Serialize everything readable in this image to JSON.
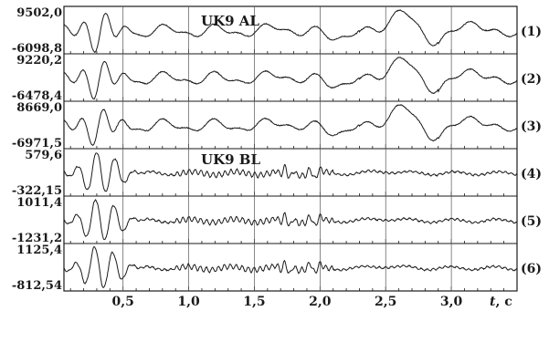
{
  "chart_data": {
    "type": "line",
    "group_labels": [
      "UK9 AL",
      "UK9 BL"
    ],
    "x_axis": {
      "label": "t, c",
      "label_italic_part": "t",
      "label_unit_part": ", c",
      "ticks": [
        0.5,
        1.0,
        1.5,
        2.0,
        2.5,
        3.0
      ],
      "tick_labels": [
        "0,5",
        "1,0",
        "1,5",
        "2,0",
        "2,5",
        "3,0"
      ],
      "xlim": [
        0.05,
        3.5
      ]
    },
    "grid": true,
    "series": [
      {
        "name": "(1)",
        "y_max_label": "9502,0",
        "y_min_label": "-6098,8",
        "y_max": 9502.0,
        "y_min": -6098.8,
        "group": "UK9 AL"
      },
      {
        "name": "(2)",
        "y_max_label": "9220,2",
        "y_min_label": "-6478,4",
        "y_max": 9220.2,
        "y_min": -6478.4,
        "group": "UK9 AL"
      },
      {
        "name": "(3)",
        "y_max_label": "8669,0",
        "y_min_label": "-6971,5",
        "y_max": 8669.0,
        "y_min": -6971.5,
        "group": "UK9 AL"
      },
      {
        "name": "(4)",
        "y_max_label": "579,6",
        "y_min_label": "-322,15",
        "y_max": 579.6,
        "y_min": -322.15,
        "group": "UK9 BL"
      },
      {
        "name": "(5)",
        "y_max_label": "1011,4",
        "y_min_label": "-1231,2",
        "y_max": 1011.4,
        "y_min": -1231.2,
        "group": "UK9 BL"
      },
      {
        "name": "(6)",
        "y_max_label": "1125,4",
        "y_min_label": "-812,54",
        "y_max": 1125.4,
        "y_min": -812.54,
        "group": "UK9 BL"
      }
    ],
    "line_color": "#1a1a1a"
  }
}
